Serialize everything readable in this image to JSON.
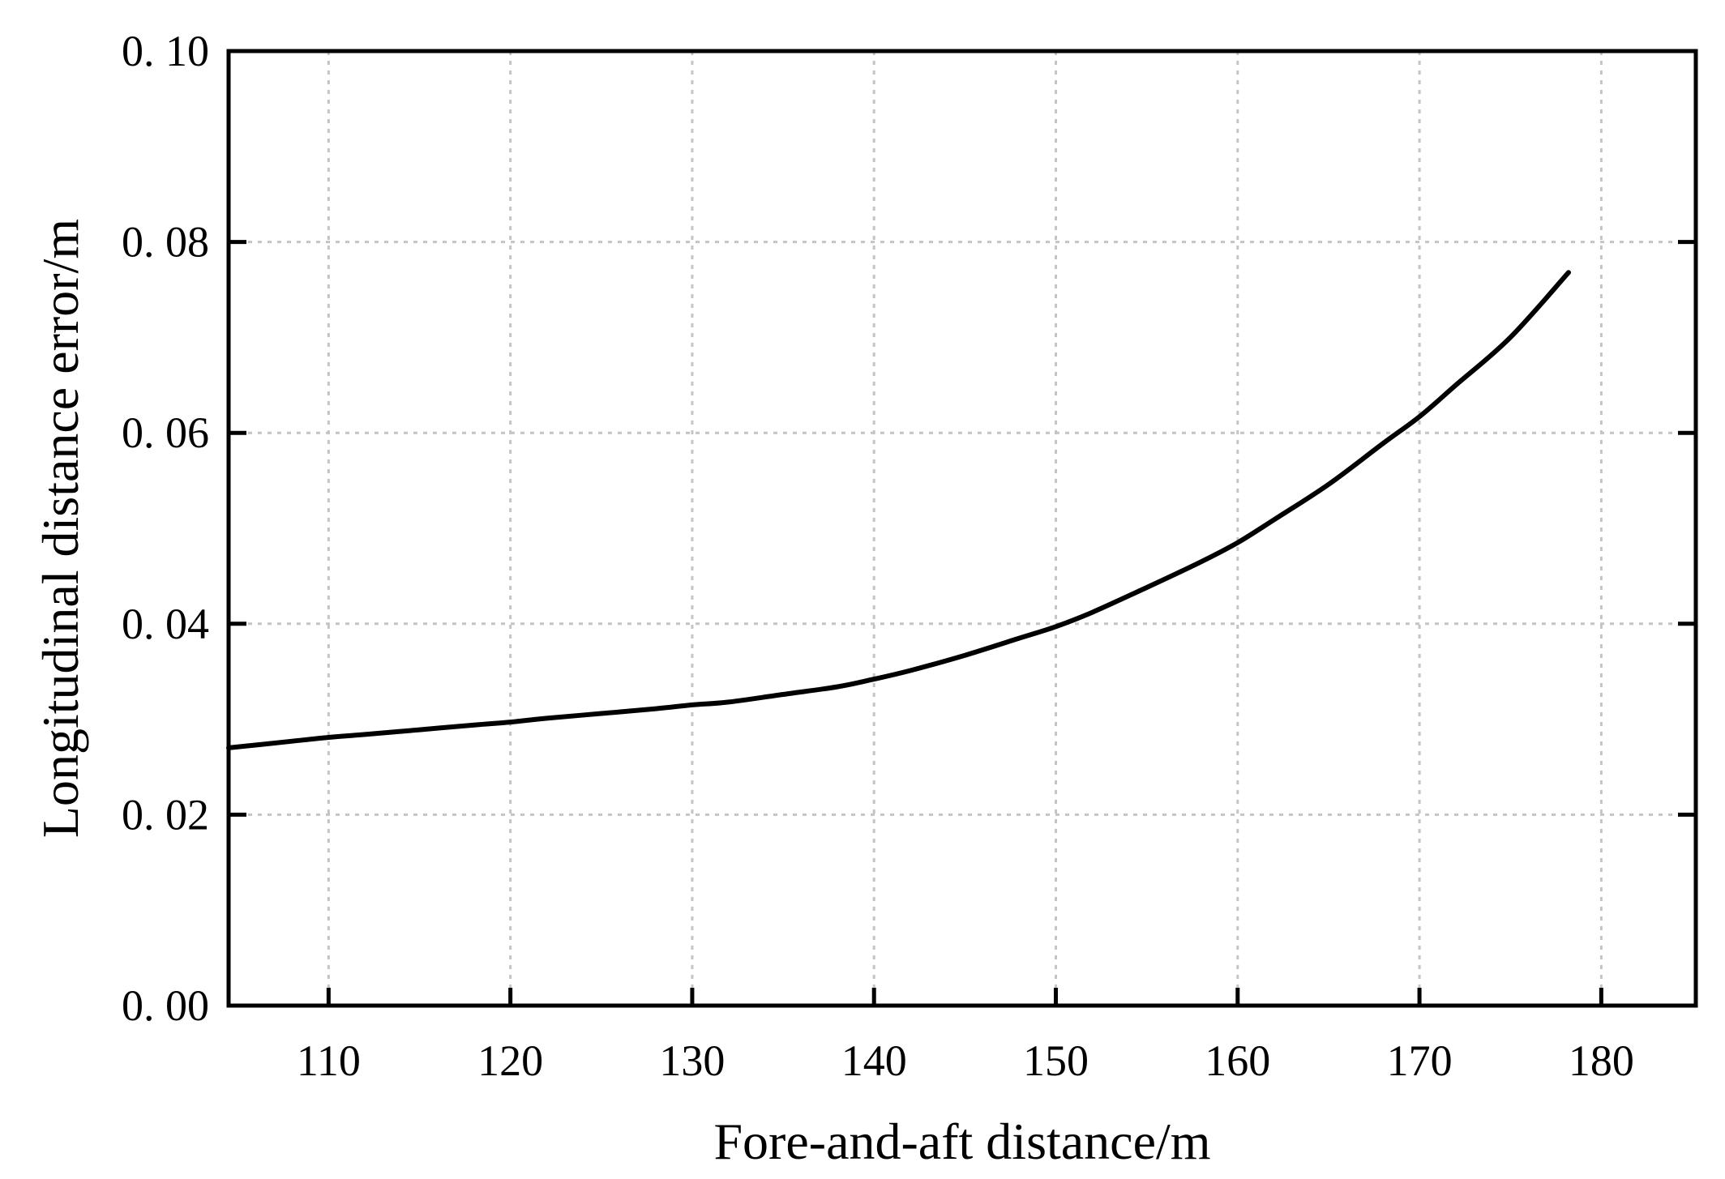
{
  "chart_data": {
    "type": "line",
    "title": "",
    "xlabel": "Fore-and-aft distance/m",
    "ylabel": "Longitudinal distance error/m",
    "xlim": [
      104.5,
      185.2
    ],
    "ylim": [
      0.0,
      0.1
    ],
    "x_ticks": [
      110,
      120,
      130,
      140,
      150,
      160,
      170,
      180
    ],
    "x_tick_labels": [
      "110",
      "120",
      "130",
      "140",
      "150",
      "160",
      "170",
      "180"
    ],
    "y_ticks": [
      0.0,
      0.02,
      0.04,
      0.06,
      0.08,
      0.1
    ],
    "y_tick_labels": [
      "0. 00",
      "0. 02",
      "0. 04",
      "0. 06",
      "0. 08",
      "0. 10"
    ],
    "grid": true,
    "legend": "none",
    "series": [
      {
        "color": "#000000",
        "x": [
          104.5,
          108,
          110,
          112,
          115,
          118,
          120,
          122,
          125,
          128,
          130,
          132,
          135,
          138,
          140,
          142,
          145,
          148,
          150,
          152,
          155,
          158,
          160,
          162,
          165,
          168,
          170,
          172,
          175,
          178.2
        ],
        "y": [
          0.027,
          0.0277,
          0.0281,
          0.0284,
          0.0289,
          0.0294,
          0.0297,
          0.0301,
          0.0306,
          0.0311,
          0.0315,
          0.0318,
          0.0326,
          0.0334,
          0.0342,
          0.0351,
          0.0367,
          0.0385,
          0.0397,
          0.0412,
          0.0438,
          0.0465,
          0.0485,
          0.0509,
          0.0546,
          0.0589,
          0.0617,
          0.065,
          0.07,
          0.0768
        ]
      }
    ]
  }
}
